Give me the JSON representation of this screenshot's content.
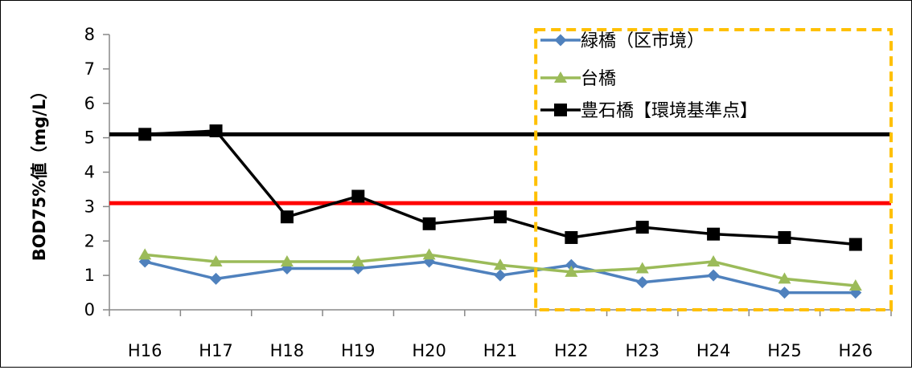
{
  "chart_data": {
    "type": "line",
    "ylabel": "BOD75%値（mg/L）",
    "xlabel": "",
    "ylim": [
      0,
      8
    ],
    "yticks": [
      0,
      1,
      2,
      3,
      4,
      5,
      6,
      7,
      8
    ],
    "categories": [
      "H16",
      "H17",
      "H18",
      "H19",
      "H20",
      "H21",
      "H22",
      "H23",
      "H24",
      "H25",
      "H26"
    ],
    "series": [
      {
        "name": "緑橋（区市境）",
        "color": "#4f81bd",
        "marker": "diamond",
        "values": [
          1.4,
          0.9,
          1.2,
          1.2,
          1.4,
          1.0,
          1.3,
          0.8,
          1.0,
          0.5,
          0.5
        ]
      },
      {
        "name": "台橋",
        "color": "#9bbb59",
        "marker": "triangle",
        "values": [
          1.6,
          1.4,
          1.4,
          1.4,
          1.6,
          1.3,
          1.1,
          1.2,
          1.4,
          0.9,
          0.7
        ]
      },
      {
        "name": "豊石橋【環境基準点】",
        "color": "#000000",
        "marker": "square",
        "values": [
          5.1,
          5.2,
          2.7,
          3.3,
          2.5,
          2.7,
          2.1,
          2.4,
          2.2,
          2.1,
          1.9
        ]
      }
    ],
    "reference_lines": [
      {
        "value": 5.1,
        "color": "#000000"
      },
      {
        "value": 3.1,
        "color": "#ff0000"
      }
    ],
    "highlight_box": {
      "from_category": "H22",
      "to_category": "H26",
      "color": "#ffc000",
      "style": "dashed"
    },
    "legend_position": "top-right",
    "grid": false
  }
}
